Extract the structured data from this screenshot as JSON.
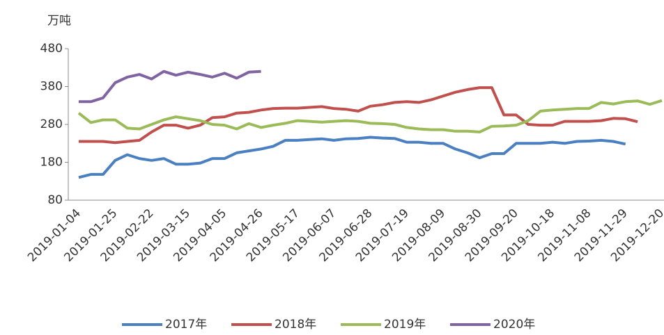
{
  "chart_data": {
    "type": "line",
    "y_label": "万吨",
    "categories": [
      "2019-01-04",
      null,
      null,
      "2019-01-25",
      null,
      null,
      "2019-02-22",
      null,
      null,
      "2019-03-15",
      null,
      null,
      "2019-04-05",
      null,
      null,
      "2019-04-26",
      null,
      null,
      "2019-05-17",
      null,
      null,
      "2019-06-07",
      null,
      null,
      "2019-06-28",
      null,
      null,
      "2019-07-19",
      null,
      null,
      "2019-08-09",
      null,
      null,
      "2019-08-30",
      null,
      null,
      "2019-09-20",
      null,
      null,
      "2019-10-18",
      null,
      null,
      "2019-11-08",
      null,
      null,
      "2019-11-29",
      null,
      null,
      "2019-12-20"
    ],
    "ylim": [
      80,
      480
    ],
    "yticks": [
      80,
      180,
      280,
      380,
      480
    ],
    "series": [
      {
        "name": "2017年",
        "color": "#4a7fc1",
        "values": [
          140,
          148,
          148,
          185,
          200,
          190,
          185,
          190,
          175,
          175,
          178,
          190,
          190,
          205,
          210,
          215,
          222,
          238,
          238,
          240,
          242,
          238,
          242,
          243,
          246,
          244,
          243,
          233,
          233,
          230,
          230,
          215,
          205,
          192,
          203,
          203,
          230,
          230,
          230,
          233,
          230,
          235,
          236,
          238,
          235,
          228,
          null,
          null,
          null
        ]
      },
      {
        "name": "2018年",
        "color": "#c0504d",
        "values": [
          235,
          235,
          235,
          232,
          235,
          238,
          260,
          278,
          278,
          270,
          278,
          298,
          300,
          310,
          312,
          318,
          322,
          323,
          323,
          325,
          327,
          322,
          320,
          315,
          328,
          332,
          338,
          340,
          338,
          345,
          355,
          365,
          372,
          377,
          377,
          305,
          305,
          280,
          278,
          278,
          288,
          288,
          288,
          290,
          296,
          295,
          287,
          null,
          null
        ]
      },
      {
        "name": "2019年",
        "color": "#9bbb59",
        "values": [
          310,
          285,
          292,
          292,
          270,
          268,
          280,
          292,
          300,
          295,
          290,
          280,
          278,
          268,
          282,
          272,
          278,
          283,
          290,
          288,
          286,
          288,
          290,
          288,
          283,
          282,
          280,
          272,
          268,
          266,
          266,
          262,
          262,
          260,
          275,
          276,
          278,
          290,
          315,
          318,
          320,
          322,
          322,
          338,
          334,
          340,
          342,
          333,
          343
        ]
      },
      {
        "name": "2020年",
        "color": "#8064a2",
        "values": [
          340,
          340,
          350,
          390,
          405,
          412,
          400,
          420,
          410,
          418,
          412,
          405,
          415,
          402,
          418,
          420,
          null,
          null,
          null,
          null,
          null,
          null,
          null,
          null,
          null,
          null,
          null,
          null,
          null,
          null,
          null,
          null,
          null,
          null,
          null,
          null,
          null,
          null,
          null,
          null,
          null,
          null,
          null,
          null,
          null,
          null,
          null,
          null,
          null
        ]
      }
    ]
  }
}
